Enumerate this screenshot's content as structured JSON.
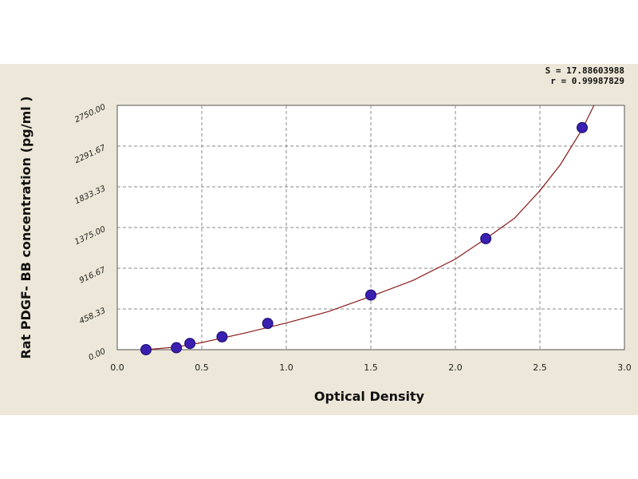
{
  "chart_data": {
    "type": "scatter",
    "xlabel": "Optical Density",
    "ylabel": "Rat PDGF- BB concentration (pg/ml )",
    "xlim": [
      0,
      3.0
    ],
    "ylim": [
      0,
      2750
    ],
    "x_ticks": [
      "0.0",
      "0.5",
      "1.0",
      "1.5",
      "2.0",
      "2.5",
      "3.0"
    ],
    "y_ticks": [
      "0.00",
      "458.33",
      "916.67",
      "1375.00",
      "1833.33",
      "2291.67",
      "2750.00"
    ],
    "grid": true,
    "stats": [
      "S = 17.88603988",
      "r = 0.99987829"
    ],
    "points": [
      {
        "x": 0.17,
        "y": 0
      },
      {
        "x": 0.35,
        "y": 22
      },
      {
        "x": 0.43,
        "y": 70
      },
      {
        "x": 0.62,
        "y": 145
      },
      {
        "x": 0.89,
        "y": 295
      },
      {
        "x": 1.5,
        "y": 615
      },
      {
        "x": 2.18,
        "y": 1250
      },
      {
        "x": 2.75,
        "y": 2500
      }
    ],
    "fit_curve": [
      {
        "x": 0.17,
        "y": 0
      },
      {
        "x": 0.35,
        "y": 30
      },
      {
        "x": 0.5,
        "y": 80
      },
      {
        "x": 0.75,
        "y": 185
      },
      {
        "x": 1.0,
        "y": 300
      },
      {
        "x": 1.25,
        "y": 430
      },
      {
        "x": 1.5,
        "y": 600
      },
      {
        "x": 1.75,
        "y": 780
      },
      {
        "x": 2.0,
        "y": 1020
      },
      {
        "x": 2.18,
        "y": 1250
      },
      {
        "x": 2.35,
        "y": 1480
      },
      {
        "x": 2.5,
        "y": 1790
      },
      {
        "x": 2.62,
        "y": 2080
      },
      {
        "x": 2.75,
        "y": 2480
      },
      {
        "x": 2.82,
        "y": 2750
      }
    ],
    "point_color": "#3a1fb0",
    "curve_color": "#8b1a1a"
  }
}
